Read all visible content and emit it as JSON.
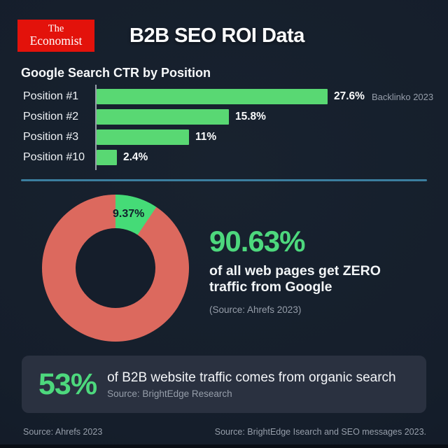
{
  "header": {
    "logo": {
      "line1": "The",
      "line2": "Economist"
    },
    "title": "B2B SEO ROI Data"
  },
  "bar_section": {
    "title": "Google Search CTR by Position",
    "annotation": "Backlinko 2023",
    "bars": [
      {
        "label": "Position #1",
        "value_label": "27.6%",
        "pct": 27.6
      },
      {
        "label": "Position #2",
        "value_label": "15.8%",
        "pct": 15.8
      },
      {
        "label": "Position #3",
        "value_label": "11%",
        "pct": 11
      },
      {
        "label": "Position #10",
        "value_label": "2.4%",
        "pct": 2.4
      }
    ]
  },
  "donut_section": {
    "slice_label": "9.37%",
    "slice_pct": 9.37,
    "headline": "90.63%",
    "caption_line1": "of all web pages get ZERO",
    "caption_line2": "traffic from Google",
    "source": "(Source: Ahrefs 2023)"
  },
  "stat_card": {
    "value": "53%",
    "text": "of B2B website traffic comes from organic search",
    "source": "Source: BrightEdge Research"
  },
  "footer": {
    "left": "Source: Ahrefs 2023",
    "right": "Source: BrightEdge Isearch and SEO messages 2023."
  },
  "colors": {
    "background": "#151e2b",
    "logo_red": "#e3120b",
    "bar_green": "#59d873",
    "donut_green": "#45db77",
    "donut_red": "#dc695e",
    "text_green": "#4dd87d",
    "divider_teal": "#3b7e9f",
    "card_bg": "#2a3140",
    "muted_gray": "#969eaa"
  },
  "chart_data": [
    {
      "type": "bar",
      "orientation": "horizontal",
      "title": "Google Search CTR by Position",
      "categories": [
        "Position #1",
        "Position #2",
        "Position #3",
        "Position #10"
      ],
      "values": [
        27.6,
        15.8,
        11,
        2.4
      ],
      "data_labels": [
        "27.6%",
        "15.8%",
        "11%",
        "2.4%"
      ],
      "unit": "%",
      "annotation": "Backlinko 2023",
      "bar_color": "#59d873",
      "xlim": [
        0,
        30
      ],
      "grid": false,
      "legend": false
    },
    {
      "type": "pie",
      "subtype": "donut",
      "slices": [
        {
          "label": "9.37%",
          "value": 9.37,
          "color": "#45db77"
        },
        {
          "label": "90.63%",
          "value": 90.63,
          "color": "#dc695e"
        }
      ],
      "start_angle_deg": 0,
      "direction": "clockwise",
      "caption": "90.63% of all web pages get ZERO traffic from Google",
      "source": "(Source: Ahrefs 2023)",
      "legend": false
    }
  ]
}
